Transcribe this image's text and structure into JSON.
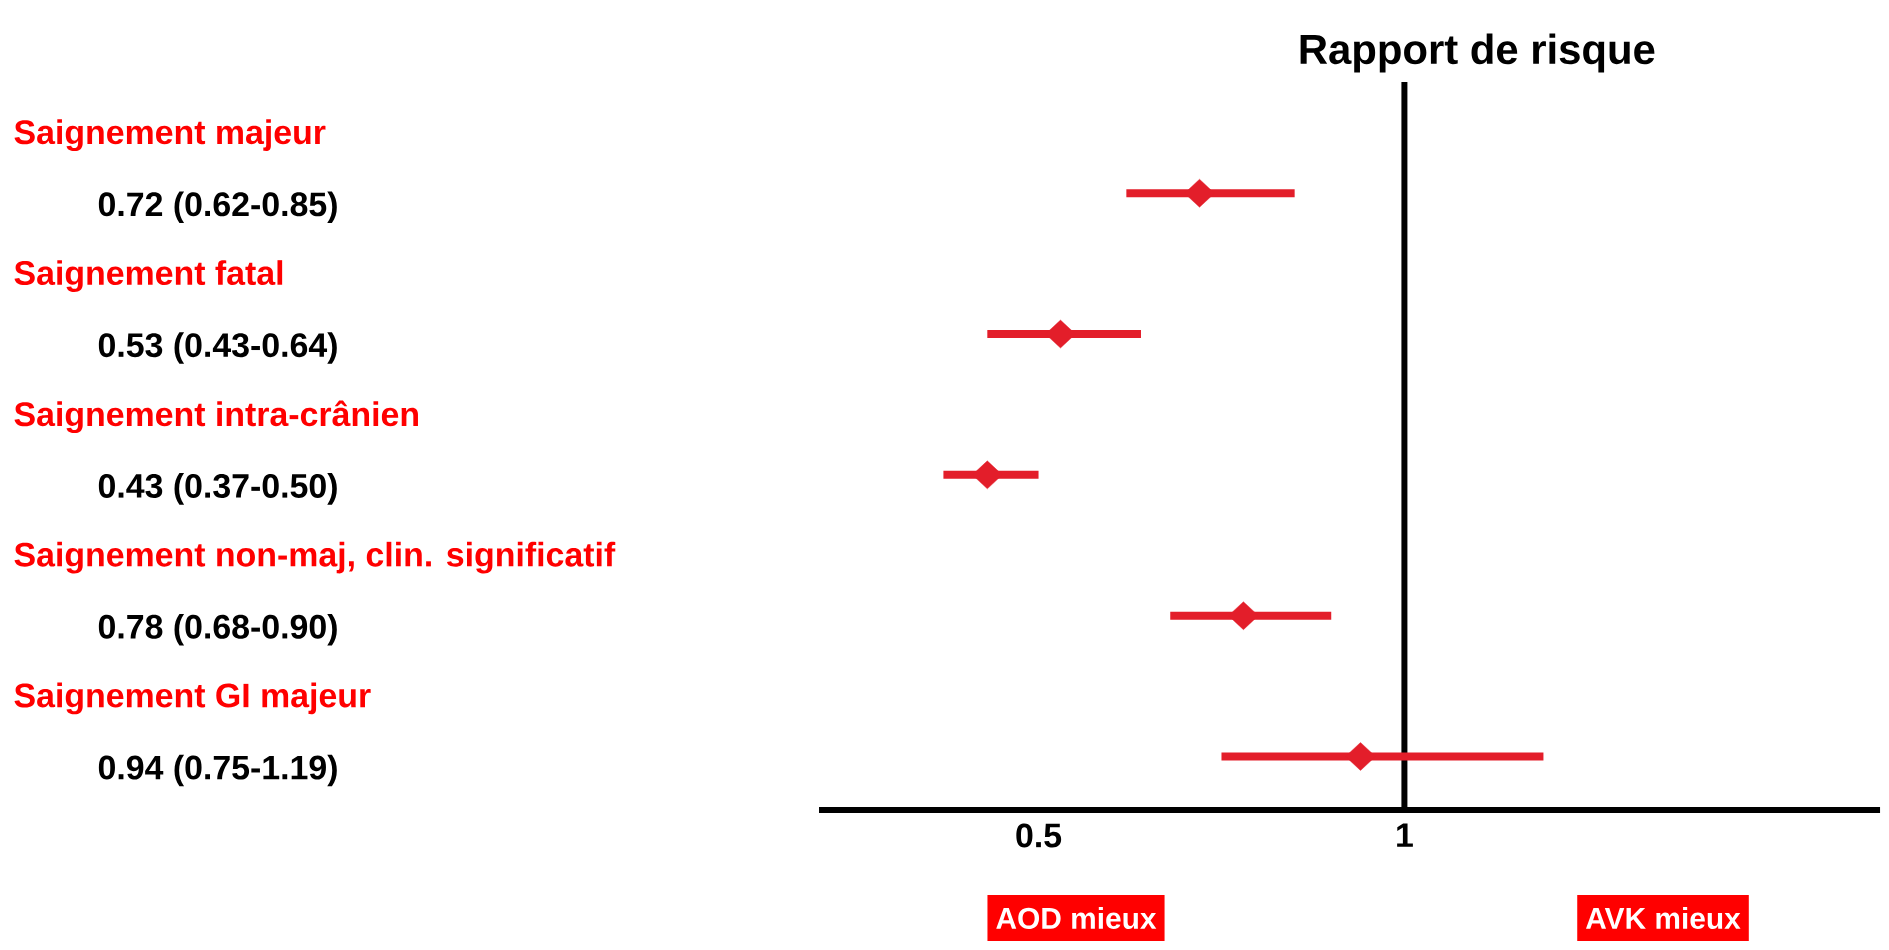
{
  "chart_data": {
    "type": "scatter",
    "orientation": "horizontal",
    "title": "Rapport de risque",
    "categories": [
      "Saignement majeur",
      "Saignement fatal",
      "Saignement intra-crânien",
      "Saignement non-maj, clin. significatif",
      "Saignement GI majeur"
    ],
    "values": [
      0.72,
      0.53,
      0.43,
      0.78,
      0.94
    ],
    "errors": [
      [
        0.62,
        0.85
      ],
      [
        0.43,
        0.64
      ],
      [
        0.37,
        0.5
      ],
      [
        0.68,
        0.9
      ],
      [
        0.75,
        1.19
      ]
    ],
    "value_labels": [
      "0.72 (0.62-0.85)",
      "0.53 (0.43-0.64)",
      "0.43 (0.37-0.50)",
      "0.78 (0.68-0.90)",
      "0.94 (0.75-1.19)"
    ],
    "color": "#e31e2a",
    "marker": "diamond",
    "xlim": [
      0.2,
      1.65
    ],
    "xticks": [
      0.5,
      1
    ],
    "ref_lines": [
      {
        "axis": "x",
        "value": 1,
        "color": "#000000"
      }
    ],
    "annotations": [
      "AOD mieux",
      "AVK mieux"
    ],
    "grid": false
  }
}
